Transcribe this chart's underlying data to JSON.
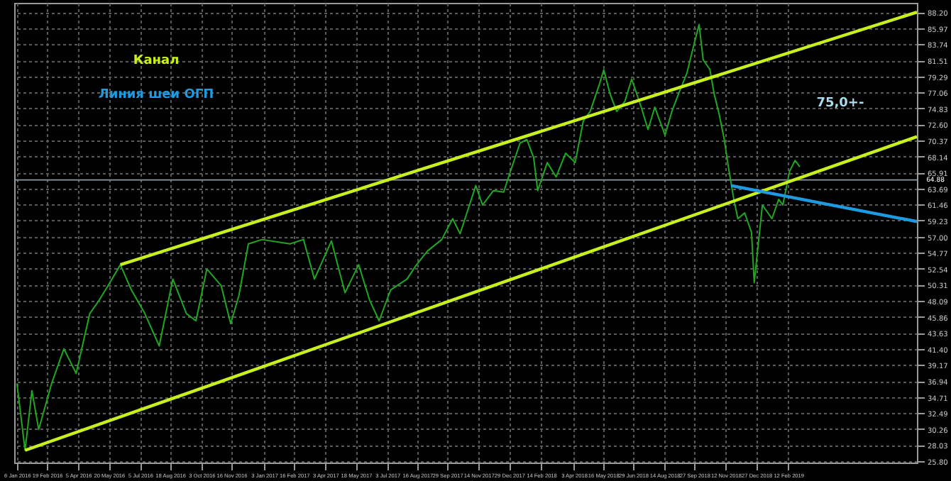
{
  "chart_data": {
    "type": "line",
    "xlim": [
      "2016-01-02",
      "2019-08-20"
    ],
    "xticks": [
      {
        "value": "2016-01-06",
        "label": "6 Jan 2016"
      },
      {
        "value": "2016-02-19",
        "label": "19 Feb 2016"
      },
      {
        "value": "2016-04-05",
        "label": "5 Apr 2016"
      },
      {
        "value": "2016-05-20",
        "label": "20 May 2016"
      },
      {
        "value": "2016-07-05",
        "label": "5 Jul 2016"
      },
      {
        "value": "2016-08-18",
        "label": "18 Aug 2016"
      },
      {
        "value": "2016-10-03",
        "label": "3 Oct 2016"
      },
      {
        "value": "2016-11-16",
        "label": "16 Nov 2016"
      },
      {
        "value": "2017-01-03",
        "label": "3 Jan 2017"
      },
      {
        "value": "2017-02-16",
        "label": "16 Feb 2017"
      },
      {
        "value": "2017-04-03",
        "label": "3 Apr 2017"
      },
      {
        "value": "2017-05-18",
        "label": "18 May 2017"
      },
      {
        "value": "2017-07-03",
        "label": "3 Jul 2017"
      },
      {
        "value": "2017-08-16",
        "label": "16 Aug 2017"
      },
      {
        "value": "2017-09-29",
        "label": "29 Sep 2017"
      },
      {
        "value": "2017-11-14",
        "label": "14 Nov 2017"
      },
      {
        "value": "2017-12-29",
        "label": "29 Dec 2017"
      },
      {
        "value": "2018-02-14",
        "label": "14 Feb 2018"
      },
      {
        "value": "2018-04-03",
        "label": "3 Apr 2018"
      },
      {
        "value": "2018-05-16",
        "label": "16 May 2018"
      },
      {
        "value": "2018-06-29",
        "label": "29 Jun 2018"
      },
      {
        "value": "2018-08-14",
        "label": "14 Aug 2018"
      },
      {
        "value": "2018-09-27",
        "label": "27 Sep 2018"
      },
      {
        "value": "2018-11-12",
        "label": "12 Nov 2018"
      },
      {
        "value": "2018-12-27",
        "label": "27 Dec 2018"
      },
      {
        "value": "2019-02-12",
        "label": "12 Feb 2019"
      }
    ],
    "ylim": [
      25.6,
      89.5
    ],
    "yticks": [
      {
        "value": 25.8,
        "label": "25.80"
      },
      28.03,
      30.26,
      32.49,
      34.71,
      36.94,
      39.17,
      {
        "value": 41.4,
        "label": "41.40"
      },
      43.63,
      45.86,
      48.09,
      50.31,
      52.54,
      54.77,
      {
        "value": 57,
        "label": "57.00"
      },
      59.23,
      61.46,
      63.69,
      65.91,
      68.14,
      70.37,
      {
        "value": 72.6,
        "label": "72.60"
      },
      74.83,
      77.06,
      79.29,
      81.51,
      83.74,
      85.97,
      {
        "value": 88.2,
        "label": "88.20"
      }
    ],
    "grid": true,
    "series": [
      {
        "color": "#1fa81f",
        "x": [
          "2016-01-06",
          "2016-01-18",
          "2016-01-28",
          "2016-02-07",
          "2016-02-26",
          "2016-03-15",
          "2016-04-02",
          "2016-04-22",
          "2016-05-06",
          "2016-05-19",
          "2016-06-06",
          "2016-06-22",
          "2016-07-12",
          "2016-08-02",
          "2016-08-22",
          "2016-09-11",
          "2016-09-25",
          "2016-10-11",
          "2016-11-01",
          "2016-11-15",
          "2016-11-27",
          "2016-12-11",
          "2016-12-31",
          "2017-02-10",
          "2017-03-02",
          "2017-03-18",
          "2017-04-12",
          "2017-05-02",
          "2017-05-22",
          "2017-06-07",
          "2017-06-21",
          "2017-07-08",
          "2017-08-01",
          "2017-08-15",
          "2017-08-31",
          "2017-09-21",
          "2017-10-07",
          "2017-10-18",
          "2017-11-10",
          "2017-11-20",
          "2017-12-06",
          "2017-12-21",
          "2017-12-31",
          "2018-01-14",
          "2018-01-24",
          "2018-02-03",
          "2018-02-09",
          "2018-02-23",
          "2018-03-08",
          "2018-03-22",
          "2018-04-05",
          "2018-04-17",
          "2018-04-27",
          "2018-05-11",
          "2018-05-17",
          "2018-05-26",
          "2018-06-05",
          "2018-06-17",
          "2018-06-27",
          "2018-07-11",
          "2018-07-21",
          "2018-07-31",
          "2018-08-15",
          "2018-08-25",
          "2018-09-04",
          "2018-09-16",
          "2018-09-26",
          "2018-10-04",
          "2018-10-10",
          "2018-10-20",
          "2018-10-26",
          "2018-11-03",
          "2018-11-10",
          "2018-11-16",
          "2018-11-24",
          "2018-11-30",
          "2018-12-10",
          "2018-12-20",
          "2018-12-24",
          "2018-12-30",
          "2019-01-05",
          "2019-01-19",
          "2019-01-29",
          "2019-02-04",
          "2019-02-14",
          "2019-02-22",
          "2019-03-01"
        ],
        "values": [
          36.6,
          27.3,
          35.6,
          30.2,
          36.6,
          41.4,
          38.0,
          46.3,
          48.2,
          50.2,
          53.1,
          49.6,
          46.3,
          41.8,
          51.1,
          46.3,
          45.3,
          52.5,
          50.2,
          44.9,
          48.8,
          56.0,
          56.6,
          56.0,
          56.6,
          51.1,
          56.4,
          49.2,
          53.1,
          48.2,
          45.3,
          49.6,
          51.1,
          53.1,
          55.0,
          56.6,
          59.5,
          57.4,
          64.1,
          61.4,
          63.4,
          63.2,
          66.1,
          70.0,
          70.5,
          68.0,
          63.4,
          67.3,
          65.3,
          68.6,
          67.3,
          73.1,
          74.4,
          78.3,
          80.2,
          76.9,
          74.4,
          75.8,
          78.9,
          75.0,
          71.9,
          75.0,
          71.1,
          74.4,
          76.9,
          79.7,
          83.5,
          86.5,
          81.6,
          80.2,
          76.9,
          73.8,
          70.5,
          66.7,
          62.2,
          59.5,
          60.3,
          57.6,
          50.6,
          56.0,
          61.4,
          59.5,
          62.2,
          61.4,
          66.1,
          67.6,
          66.7
        ]
      },
      {
        "name": "Канал",
        "color": "#c8f01e",
        "x": [
          "2016-06-06",
          "2019-08-20"
        ],
        "values": [
          53.1,
          88.2
        ]
      },
      {
        "color": "#c8f01e",
        "x": [
          "2016-01-18",
          "2019-08-20"
        ],
        "values": [
          27.3,
          70.9
        ]
      },
      {
        "name": "Линия шеи ОГП",
        "color": "#1e9be0",
        "x": [
          "2018-11-20",
          "2019-08-20"
        ],
        "values": [
          64.1,
          59.1
        ]
      }
    ],
    "ref_lines": [
      {
        "axis": "y",
        "value": 64.88,
        "label": "64.88",
        "color": "#8a9aa6"
      }
    ],
    "annotations": [
      "75,0+-"
    ]
  }
}
